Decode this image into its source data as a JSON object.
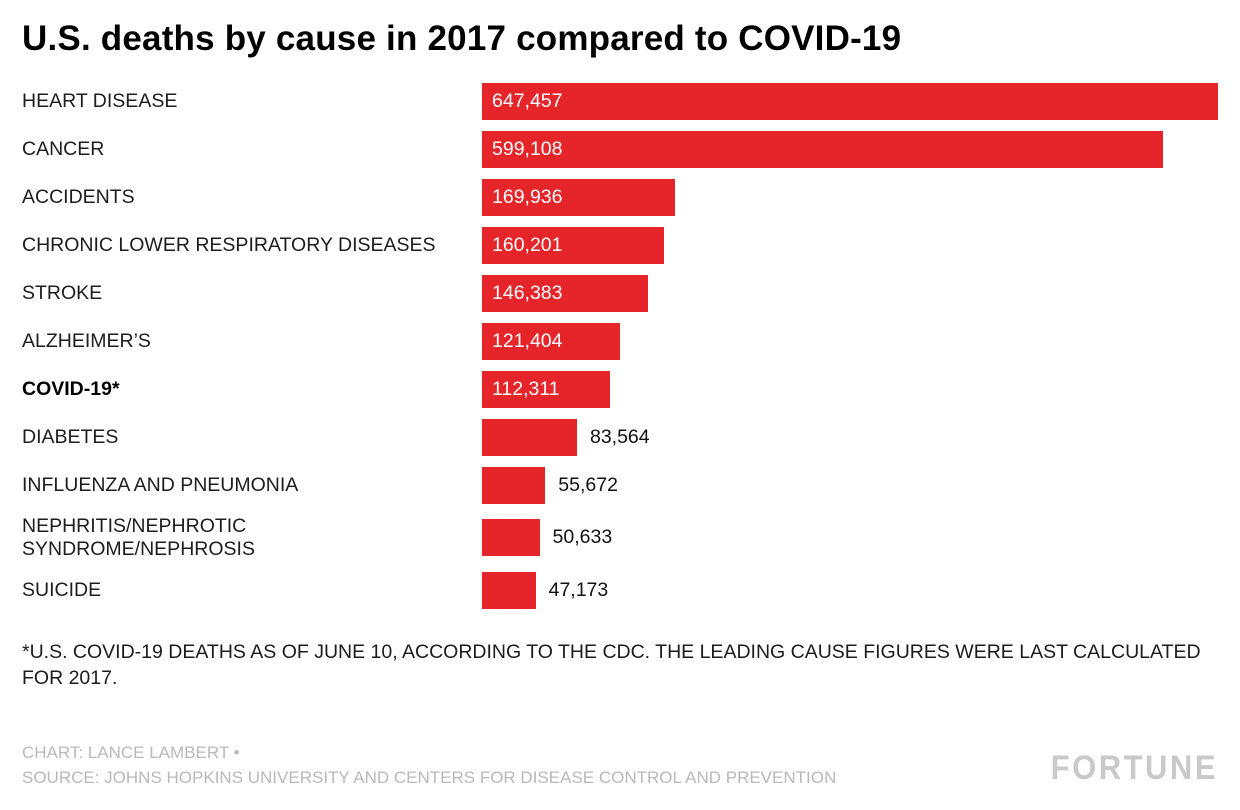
{
  "page": {
    "title": "U.S. deaths by cause in 2017 compared to COVID-19",
    "footnote": "*U.S. COVID-19 DEATHS AS OF JUNE 10, ACCORDING TO THE CDC. THE LEADING CAUSE FIGURES WERE LAST CALCULATED FOR 2017.",
    "credit": "CHART: LANCE LAMBERT •",
    "source": "SOURCE: JOHNS HOPKINS UNIVERSITY AND CENTERS FOR DISEASE CONTROL AND PREVENTION",
    "logo": "FORTUNE"
  },
  "colors": {
    "bar": "#e6252b",
    "value_inside": "#ffffff",
    "value_outside": "#111111",
    "credits": "#b9b9b9",
    "logo": "#c9c9c9"
  },
  "chart_data": {
    "type": "bar",
    "orientation": "horizontal",
    "title": "U.S. deaths by cause in 2017 compared to COVID-19",
    "xlim": [
      0,
      647457
    ],
    "grid": false,
    "legend": false,
    "categories": [
      "HEART DISEASE",
      "CANCER",
      "ACCIDENTS",
      "CHRONIC LOWER RESPIRATORY DISEASES",
      "STROKE",
      "ALZHEIMER’S",
      "COVID-19*",
      "DIABETES",
      "INFLUENZA AND PNEUMONIA",
      "NEPHRITIS/NEPHROTIC\nSYNDROME/NEPHROSIS",
      "SUICIDE"
    ],
    "values": [
      647457,
      599108,
      169936,
      160201,
      146383,
      121404,
      112311,
      83564,
      55672,
      50633,
      47173
    ],
    "value_labels": [
      "647,457",
      "599,108",
      "169,936",
      "160,201",
      "146,383",
      "121,404",
      "112,311",
      "83,564",
      "55,672",
      "50,633",
      "47,173"
    ],
    "bold_category_index": 6,
    "bar_color": "#e6252b"
  }
}
